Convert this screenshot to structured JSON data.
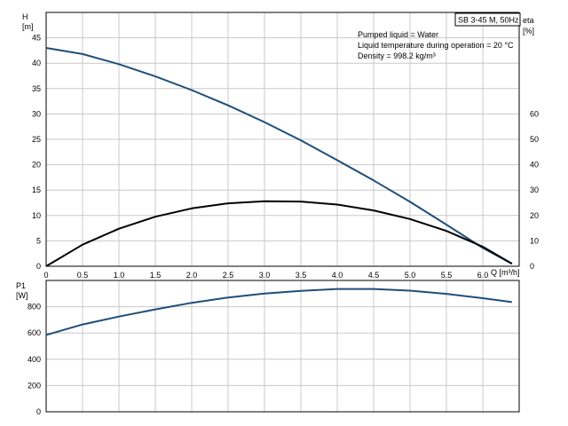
{
  "chart_data": [
    {
      "type": "line",
      "name": "head-and-efficiency",
      "title": "SB 3-45 M, 50Hz",
      "annotations": [
        "Pumped liquid = Water",
        "Liquid temperature during operation = 20 °C",
        "Density = 998.2 kg/m³"
      ],
      "xlabel": "Q [m³/h]",
      "xlim": [
        0,
        6.5
      ],
      "x_ticks": [
        "0",
        "0.5",
        "1.0",
        "1.5",
        "2.0",
        "2.5",
        "3.0",
        "3.5",
        "4.0",
        "4.5",
        "5.0",
        "5.5",
        "6.0"
      ],
      "ylabel_left": "H",
      "ylabel_left_unit": "[m]",
      "ylim_left": [
        0,
        50
      ],
      "y_ticks_left": [
        "0",
        "5",
        "10",
        "15",
        "20",
        "25",
        "30",
        "35",
        "40",
        "45"
      ],
      "ylabel_right": "eta",
      "ylabel_right_unit": "[%]",
      "ylim_right": [
        0,
        100
      ],
      "y_ticks_right": [
        "0",
        "10",
        "20",
        "30",
        "40",
        "50",
        "60"
      ],
      "grid": true,
      "series": [
        {
          "axis": "left",
          "color": "#1f4e79",
          "x": [
            0,
            0.5,
            1.0,
            1.5,
            2.0,
            2.5,
            3.0,
            3.5,
            4.0,
            4.5,
            5.0,
            5.5,
            6.0,
            6.4
          ],
          "y": [
            43,
            41.8,
            39.8,
            37.4,
            34.7,
            31.7,
            28.4,
            24.8,
            20.9,
            16.9,
            12.7,
            8.2,
            3.6,
            0.5
          ]
        },
        {
          "axis": "right",
          "color": "#000000",
          "x": [
            0,
            0.5,
            1.0,
            1.5,
            2.0,
            2.5,
            3.0,
            3.5,
            4.0,
            4.5,
            5.0,
            5.5,
            6.0,
            6.4
          ],
          "y": [
            0,
            8.5,
            14.8,
            19.5,
            22.8,
            24.8,
            25.6,
            25.5,
            24.3,
            22.0,
            18.6,
            13.9,
            7.7,
            1.0
          ]
        }
      ]
    },
    {
      "type": "line",
      "name": "power",
      "xlabel": "",
      "xlim": [
        0,
        6.5
      ],
      "ylabel": "P1",
      "ylabel_unit": "[W]",
      "ylim": [
        0,
        1000
      ],
      "y_ticks": [
        "0",
        "200",
        "400",
        "600",
        "800"
      ],
      "grid": true,
      "series": [
        {
          "color": "#1f4e79",
          "x": [
            0,
            0.5,
            1.0,
            1.5,
            2.0,
            2.5,
            3.0,
            3.5,
            4.0,
            4.5,
            5.0,
            5.5,
            6.0,
            6.4
          ],
          "y": [
            585,
            665,
            725,
            780,
            830,
            870,
            900,
            920,
            935,
            935,
            922,
            898,
            865,
            835
          ]
        }
      ]
    }
  ]
}
